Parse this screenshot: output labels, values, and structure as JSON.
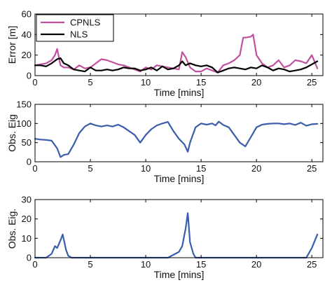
{
  "chart_data": [
    {
      "type": "line",
      "ylabel": "Error  [m]",
      "xlabel": "Time  [mins]",
      "xlim": [
        0,
        26
      ],
      "ylim": [
        0,
        60
      ],
      "xticks": [
        0,
        5,
        10,
        15,
        20,
        25
      ],
      "yticks": [
        0,
        20,
        40,
        60
      ],
      "grid": false,
      "legend": "top-left",
      "series": [
        {
          "name": "CPNLS",
          "color": "#c1509e",
          "x": [
            0,
            0.5,
            1,
            1.5,
            1.8,
            2,
            2.3,
            2.6,
            3,
            3.5,
            4,
            4.5,
            5,
            5.5,
            6,
            6.5,
            7,
            7.5,
            8,
            8.5,
            9,
            9.5,
            10,
            10.5,
            11,
            11.5,
            12,
            12.5,
            13,
            13.3,
            13.6,
            14,
            14.5,
            15,
            15.5,
            16,
            16.5,
            17,
            17.5,
            18,
            18.5,
            18.8,
            19,
            19.5,
            19.7,
            20,
            20.5,
            21,
            21.5,
            22,
            22.5,
            23,
            23.5,
            24,
            24.5,
            25,
            25.5
          ],
          "values": [
            10,
            11,
            12,
            15,
            20,
            26,
            10,
            8,
            8,
            6,
            10,
            7,
            8,
            12,
            16,
            15,
            13,
            11,
            10,
            8,
            6,
            4,
            8,
            6,
            10,
            9,
            8,
            7,
            6,
            23,
            18,
            8,
            4,
            4,
            7,
            5,
            3,
            10,
            12,
            15,
            20,
            37,
            37,
            38,
            40,
            20,
            12,
            8,
            10,
            15,
            8,
            10,
            15,
            14,
            12,
            20,
            7
          ]
        },
        {
          "name": "NLS",
          "color": "#000000",
          "x": [
            0,
            0.5,
            1,
            1.5,
            2,
            2.3,
            2.6,
            3,
            3.5,
            4,
            4.5,
            5,
            5.5,
            6,
            6.5,
            7,
            7.5,
            8,
            8.5,
            9,
            9.5,
            10,
            10.5,
            11,
            11.5,
            12,
            12.5,
            13,
            13.3,
            13.6,
            14,
            14.5,
            15,
            15.5,
            16,
            16.5,
            17,
            17.5,
            18,
            18.5,
            19,
            19.5,
            20,
            20.5,
            21,
            21.5,
            22,
            22.5,
            23,
            23.5,
            24,
            24.5,
            25,
            25.5
          ],
          "values": [
            10,
            10,
            9,
            12,
            16,
            17,
            12,
            10,
            6,
            5,
            4,
            8,
            5,
            5,
            6,
            5,
            6,
            8,
            7,
            7,
            5,
            6,
            8,
            5,
            9,
            6,
            7,
            10,
            14,
            10,
            12,
            10,
            9,
            10,
            8,
            3,
            5,
            7,
            8,
            7,
            6,
            8,
            7,
            10,
            8,
            5,
            7,
            6,
            4,
            5,
            6,
            8,
            11,
            14
          ]
        }
      ]
    },
    {
      "type": "line",
      "ylabel": "Obs. Eig",
      "xlabel": "Time  [mins]",
      "xlim": [
        0,
        26
      ],
      "ylim": [
        0,
        150
      ],
      "xticks": [
        0,
        5,
        10,
        15,
        20,
        25
      ],
      "yticks": [
        0,
        50,
        100,
        150
      ],
      "grid": false,
      "series": [
        {
          "color": "#3a5dab",
          "x": [
            0,
            0.5,
            1,
            1.5,
            2,
            2.3,
            2.6,
            3,
            3.5,
            4,
            4.5,
            5,
            5.5,
            6,
            6.5,
            7,
            7.5,
            8,
            8.5,
            9,
            9.5,
            10,
            10.5,
            11,
            11.5,
            12,
            12.5,
            13,
            13.5,
            13.8,
            14,
            14.5,
            15,
            15.5,
            16,
            16.3,
            16.6,
            17,
            17.5,
            18,
            18.5,
            19,
            19.5,
            20,
            20.5,
            21,
            21.5,
            22,
            22.5,
            23,
            23.5,
            24,
            24.5,
            25,
            25.5
          ],
          "values": [
            60,
            58,
            57,
            55,
            35,
            12,
            18,
            20,
            45,
            75,
            92,
            100,
            95,
            92,
            95,
            92,
            97,
            90,
            80,
            70,
            50,
            70,
            85,
            95,
            100,
            104,
            80,
            60,
            45,
            26,
            50,
            90,
            100,
            97,
            100,
            95,
            105,
            96,
            90,
            70,
            50,
            40,
            65,
            90,
            97,
            99,
            100,
            100,
            98,
            100,
            96,
            102,
            94,
            98,
            99
          ]
        }
      ]
    },
    {
      "type": "line",
      "ylabel": "Obs. Eig.",
      "xlabel": "Time  [mins]",
      "xlim": [
        0,
        26
      ],
      "ylim": [
        0,
        30
      ],
      "xticks": [
        0,
        5,
        10,
        15,
        20,
        25
      ],
      "yticks": [
        0,
        10,
        20,
        30
      ],
      "grid": false,
      "series": [
        {
          "color": "#3a5dab",
          "x": [
            0,
            1,
            1.5,
            1.8,
            2,
            2.3,
            2.5,
            2.8,
            3,
            3.3,
            4,
            5,
            6,
            7,
            8,
            9,
            10,
            11,
            12,
            13,
            13.3,
            13.6,
            13.8,
            14,
            14.3,
            14.5,
            15,
            16,
            17,
            18,
            19,
            20,
            21,
            22,
            23,
            24,
            24.5,
            25,
            25.5
          ],
          "values": [
            0,
            0,
            2,
            6,
            5,
            9,
            12,
            4,
            1,
            0,
            0,
            0,
            0,
            0,
            0,
            0,
            0,
            0,
            0,
            3,
            6,
            15,
            23,
            8,
            2,
            0,
            0,
            0,
            0,
            0,
            0,
            0,
            0,
            0,
            0,
            0,
            0,
            5,
            12
          ]
        }
      ]
    }
  ]
}
